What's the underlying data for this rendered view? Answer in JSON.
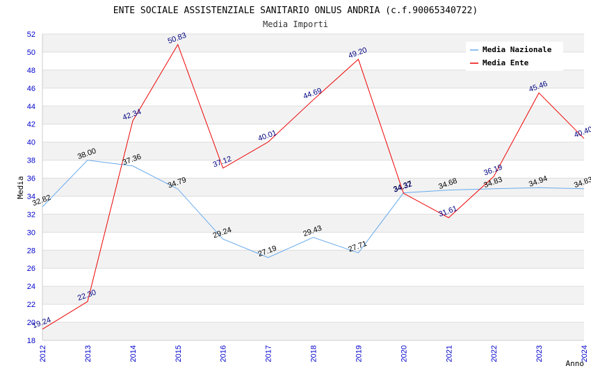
{
  "chart_data": {
    "type": "line",
    "title": "ENTE SOCIALE ASSISTENZIALE SANITARIO ONLUS ANDRIA (c.f.90065340722)",
    "subtitle": "Media Importi",
    "xlabel": "Anno",
    "ylabel": "Media",
    "ylim": [
      18,
      52
    ],
    "ytick_step": 2,
    "categories": [
      "2012",
      "2013",
      "2014",
      "2015",
      "2016",
      "2017",
      "2018",
      "2019",
      "2020",
      "2021",
      "2022",
      "2023",
      "2024"
    ],
    "series": [
      {
        "name": "Media Nazionale",
        "color": "#66aaee",
        "values": [
          32.82,
          38.0,
          37.36,
          34.79,
          29.24,
          27.19,
          29.43,
          27.71,
          34.37,
          34.68,
          34.83,
          34.94,
          34.83
        ],
        "labels": [
          "32.82",
          "38.00",
          "37.36",
          "34.79",
          "29.24",
          "27.19",
          "29.43",
          "27.71",
          "34.37",
          "34.68",
          "34.83",
          "34.94",
          "34.83"
        ]
      },
      {
        "name": "Media Ente",
        "color": "#ee0000",
        "values": [
          19.24,
          22.3,
          42.34,
          50.83,
          37.12,
          40.01,
          44.69,
          49.2,
          34.32,
          31.61,
          36.19,
          45.46,
          40.4
        ],
        "labels": [
          "19.24",
          "22.30",
          "42.34",
          "50.83",
          "37.12",
          "40.01",
          "44.69",
          "49.20",
          "34.32",
          "31.61",
          "36.19",
          "45.46",
          "40.40"
        ]
      }
    ],
    "legend_position": "top-right",
    "grid": true
  }
}
